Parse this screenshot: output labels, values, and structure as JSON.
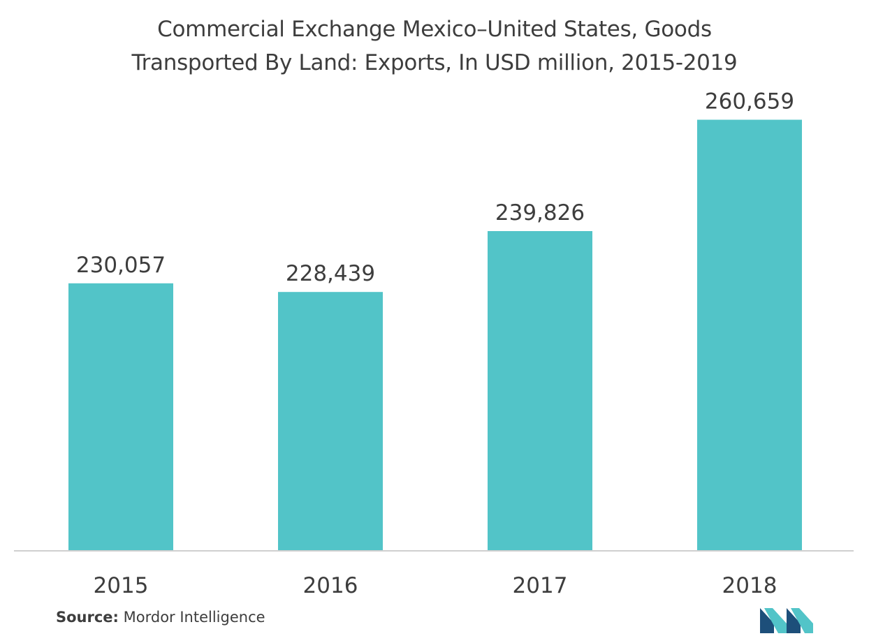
{
  "chart_data": {
    "type": "bar",
    "title_lines": [
      "Commercial Exchange Mexico–United States, Goods",
      "Transported By Land: Exports, In USD million, 2015-2019"
    ],
    "categories": [
      "2015",
      "2016",
      "2017",
      "2018"
    ],
    "values": [
      230057,
      228439,
      239826,
      260659
    ],
    "value_labels": [
      "230,057",
      "228,439",
      "239,826",
      "260,659"
    ],
    "ylim": [
      180000,
      270000
    ],
    "grid": false,
    "bar_color": "#52c4c8"
  },
  "source": {
    "label": "Source:",
    "text": " Mordor Intelligence"
  },
  "logo": {
    "icon": "mordor-intelligence-logo-icon",
    "colors": [
      "#1d4f7a",
      "#52c4c8"
    ]
  }
}
